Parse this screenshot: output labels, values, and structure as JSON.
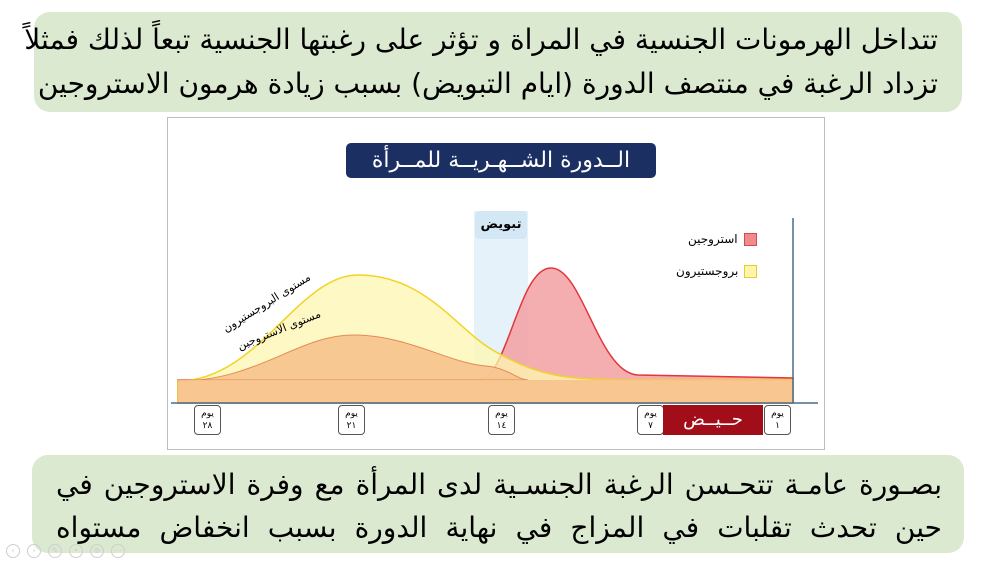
{
  "top_text": {
    "line1": "تتداخل الهرمونات الجنسية في المراة و تؤثر على رغبتها الجنسية تبعاً لذلك فمثلاً",
    "line2": "تزداد الرغبة في منتصف الدورة (ايام التبويض) بسبب زيادة هرمون الاستروجين"
  },
  "figure": {
    "title": "الــدورة الشــهـريــة للمــرأة",
    "ovulation_label": "تبويض",
    "legend": [
      {
        "label": "استروجين",
        "color": "#f08a8c"
      },
      {
        "label": "بروجستيرون",
        "color": "#fdf6a6"
      }
    ],
    "curve_labels": {
      "progesterone": "مستوى البروجستيرون",
      "estrogen": "مستوى الاستروجين"
    },
    "menses_label": "حــيــض",
    "day_markers": [
      {
        "word": "يوم",
        "number": "٢٨"
      },
      {
        "word": "يوم",
        "number": "٢١"
      },
      {
        "word": "يوم",
        "number": "١٤"
      },
      {
        "word": "يوم",
        "number": "٧"
      },
      {
        "word": "يوم",
        "number": "١"
      }
    ]
  },
  "bottom_text": {
    "line1": "بصـورة عامـة تتحـسن الرغبة الجنسـية لدى المرأة مع وفرة الاستروجين في",
    "line2": "حين تحدث تقلبات في المزاج في نهاية الدورة بسبب انخفاض مستواه"
  },
  "nav_icons": [
    "previous-icon",
    "next-icon",
    "pen-icon",
    "pointer-icon",
    "zoom-icon",
    "more-icon"
  ]
}
